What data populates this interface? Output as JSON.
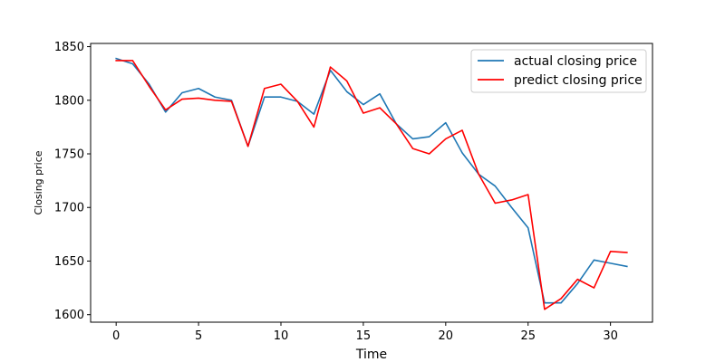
{
  "chart_data": {
    "type": "line",
    "title": "",
    "xlabel": "Time",
    "ylabel": "Closing price",
    "xlim": [
      -1.55,
      32.55
    ],
    "ylim": [
      1593,
      1853
    ],
    "xticks": [
      0,
      5,
      10,
      15,
      20,
      25,
      30
    ],
    "yticks": [
      1600,
      1650,
      1700,
      1750,
      1800,
      1850
    ],
    "grid": false,
    "legend_position": "top-right",
    "x": [
      0,
      1,
      2,
      3,
      4,
      5,
      6,
      7,
      8,
      9,
      10,
      11,
      12,
      13,
      14,
      15,
      16,
      17,
      18,
      19,
      20,
      21,
      22,
      23,
      24,
      25,
      26,
      27,
      28,
      29,
      30,
      31
    ],
    "series": [
      {
        "name": "actual closing price",
        "color": "#1f77b4",
        "values": [
          1839,
          1834,
          1815,
          1789,
          1807,
          1811,
          1803,
          1800,
          1757,
          1803,
          1803,
          1799,
          1787,
          1828,
          1808,
          1796,
          1806,
          1778,
          1764,
          1766,
          1779,
          1751,
          1731,
          1720,
          1700,
          1681,
          1611,
          1611,
          1629,
          1651,
          1648,
          1645
        ]
      },
      {
        "name": "predict closing price",
        "color": "#ff0000",
        "values": [
          1837,
          1837,
          1813,
          1791,
          1801,
          1802,
          1800,
          1799,
          1757,
          1811,
          1815,
          1799,
          1775,
          1831,
          1818,
          1788,
          1793,
          1778,
          1755,
          1750,
          1764,
          1772,
          1731,
          1704,
          1707,
          1712,
          1605,
          1615,
          1633,
          1625,
          1659,
          1658
        ]
      }
    ]
  }
}
